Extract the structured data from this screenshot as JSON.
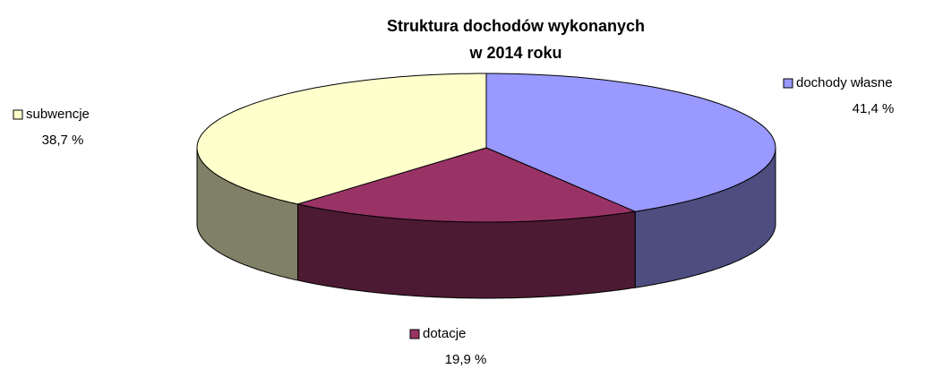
{
  "chart_data": {
    "type": "pie3d",
    "title": [
      "Struktura dochodów wykonanych",
      "w  2014 roku"
    ],
    "categories": [
      "dochody własne",
      "dotacje",
      "subwencje"
    ],
    "values": [
      41.4,
      19.9,
      38.7
    ],
    "value_labels": [
      "41,4 %",
      "19,9 %",
      "38,7 %"
    ],
    "colors": [
      "#9999ff",
      "#993366",
      "#ffffcc"
    ],
    "side_colors": [
      "#4d4d80",
      "#4d1a33",
      "#808066"
    ]
  }
}
